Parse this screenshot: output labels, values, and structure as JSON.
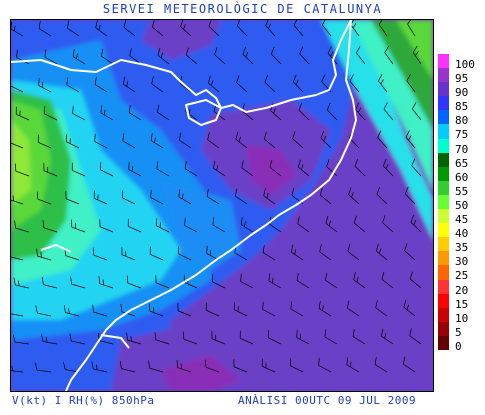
{
  "header": {
    "title": "SERVEI METEOROLÒGIC DE CATALUNYA"
  },
  "map": {
    "variable": "RH(%)",
    "level": "850hPa",
    "wind_barbs": true,
    "coastline_color": "#ffffff"
  },
  "legend": {
    "items": [
      {
        "label": "100",
        "color": "#ff33ff"
      },
      {
        "label": "95",
        "color": "#9933cc"
      },
      {
        "label": "90",
        "color": "#6633cc"
      },
      {
        "label": "85",
        "color": "#3333ff"
      },
      {
        "label": "80",
        "color": "#0066ff"
      },
      {
        "label": "75",
        "color": "#00ccff"
      },
      {
        "label": "70",
        "color": "#00ffcc"
      },
      {
        "label": "65",
        "color": "#006600"
      },
      {
        "label": "60",
        "color": "#009900"
      },
      {
        "label": "55",
        "color": "#33cc33"
      },
      {
        "label": "50",
        "color": "#66ff33"
      },
      {
        "label": "45",
        "color": "#ccff33"
      },
      {
        "label": "40",
        "color": "#ffff00"
      },
      {
        "label": "35",
        "color": "#ffcc00"
      },
      {
        "label": "30",
        "color": "#ff9900"
      },
      {
        "label": "25",
        "color": "#ff6600"
      },
      {
        "label": "20",
        "color": "#ff3333"
      },
      {
        "label": "15",
        "color": "#ff0000"
      },
      {
        "label": "10",
        "color": "#cc0000"
      },
      {
        "label": "5",
        "color": "#990000"
      },
      {
        "label": "0",
        "color": "#660000"
      }
    ]
  },
  "footer": {
    "left": "V(kt) I RH(%) 850hPa",
    "right": "ANÀLISI 00UTC 09 JUL 2009"
  }
}
